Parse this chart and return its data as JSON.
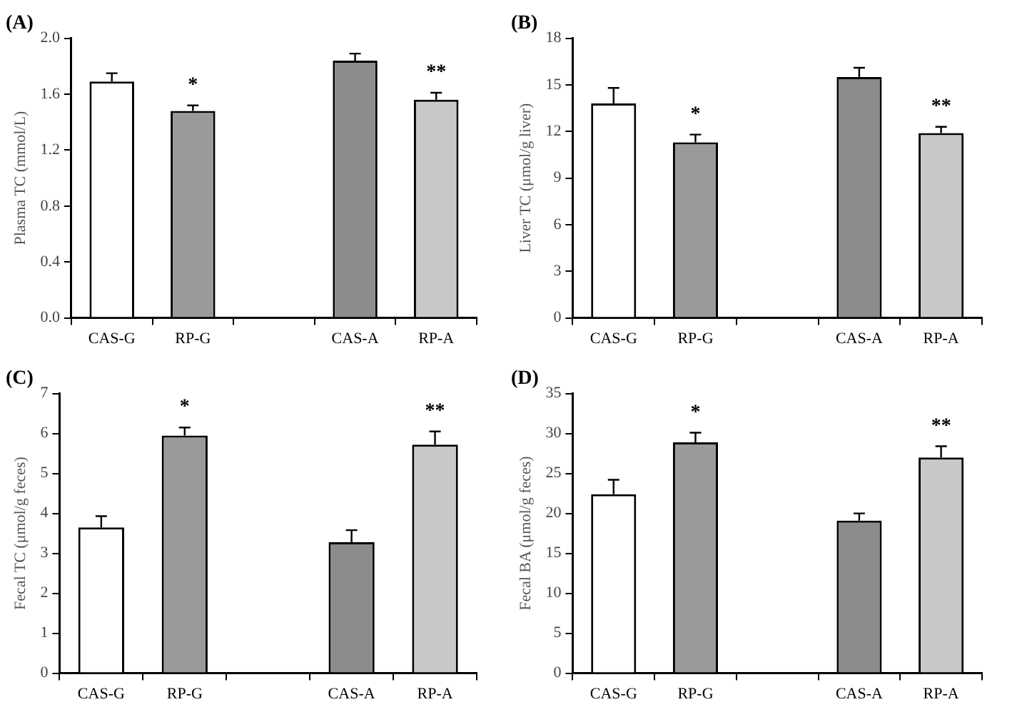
{
  "chart_data": [
    {
      "type": "bar",
      "title": "(A)",
      "ylabel": "Plasma TC (mmol/L)",
      "categories": [
        "CAS-G",
        "RP-G",
        null,
        "CAS-A",
        "RP-A"
      ],
      "values": [
        1.69,
        1.48,
        null,
        1.84,
        1.56
      ],
      "errors": [
        [
          1.69,
          1.75
        ],
        [
          1.48,
          1.52
        ],
        null,
        [
          1.84,
          1.89
        ],
        [
          1.56,
          1.61
        ]
      ],
      "value_labels": [
        null,
        "*",
        null,
        null,
        "**"
      ],
      "colors": [
        "#ffffff",
        "#9a9a9a",
        null,
        "#8c8c8c",
        "#c8c8c8"
      ],
      "ylim": [
        0,
        2.0
      ],
      "yticks": [
        {
          "value": 0,
          "label": "0.0"
        },
        {
          "value": 0.4,
          "label": "0.4"
        },
        {
          "value": 0.8,
          "label": "0.8"
        },
        {
          "value": 1.2,
          "label": "1.2"
        },
        {
          "value": 1.6,
          "label": "1.6"
        },
        {
          "value": 2.0,
          "label": "2.0"
        }
      ],
      "grid": false
    },
    {
      "type": "bar",
      "title": "(B)",
      "ylabel": "Liver TC (μmol/g liver)",
      "categories": [
        "CAS-G",
        "RP-G",
        null,
        "CAS-A",
        "RP-A"
      ],
      "values": [
        13.8,
        11.3,
        null,
        15.5,
        11.9
      ],
      "errors": [
        [
          13.8,
          14.8
        ],
        [
          11.3,
          11.8
        ],
        null,
        [
          15.5,
          16.1
        ],
        [
          11.9,
          12.3
        ]
      ],
      "value_labels": [
        null,
        "*",
        null,
        null,
        "**"
      ],
      "colors": [
        "#ffffff",
        "#9a9a9a",
        null,
        "#8c8c8c",
        "#c8c8c8"
      ],
      "ylim": [
        0,
        18
      ],
      "yticks": [
        0,
        3,
        6,
        9,
        12,
        15,
        18
      ],
      "grid": false
    },
    {
      "type": "bar",
      "title": "(C)",
      "ylabel": "Fecal TC (μmol/g feces)",
      "categories": [
        "CAS-G",
        "RP-G",
        null,
        "CAS-A",
        "RP-A"
      ],
      "values": [
        3.65,
        5.95,
        null,
        3.28,
        5.72
      ],
      "errors": [
        [
          3.65,
          3.93
        ],
        [
          5.95,
          6.15
        ],
        null,
        [
          3.28,
          3.58
        ],
        [
          5.72,
          6.05
        ]
      ],
      "value_labels": [
        null,
        "*",
        null,
        null,
        "**"
      ],
      "colors": [
        "#ffffff",
        "#9a9a9a",
        null,
        "#8c8c8c",
        "#c8c8c8"
      ],
      "ylim": [
        0,
        7
      ],
      "yticks": [
        0,
        1,
        2,
        3,
        4,
        5,
        6,
        7
      ],
      "grid": false
    },
    {
      "type": "bar",
      "title": "(D)",
      "ylabel": "Fecal BA (μmol/g feces)",
      "categories": [
        "CAS-G",
        "RP-G",
        null,
        "CAS-A",
        "RP-A"
      ],
      "values": [
        22.4,
        28.9,
        null,
        19.1,
        27.0
      ],
      "errors": [
        [
          22.4,
          24.2
        ],
        [
          28.9,
          30.1
        ],
        null,
        [
          19.1,
          20.0
        ],
        [
          27.0,
          28.4
        ]
      ],
      "value_labels": [
        null,
        "*",
        null,
        null,
        "**"
      ],
      "colors": [
        "#ffffff",
        "#9a9a9a",
        null,
        "#8c8c8c",
        "#c8c8c8"
      ],
      "ylim": [
        0,
        35
      ],
      "yticks": [
        0,
        5,
        10,
        15,
        20,
        25,
        30,
        35
      ],
      "grid": false
    }
  ]
}
